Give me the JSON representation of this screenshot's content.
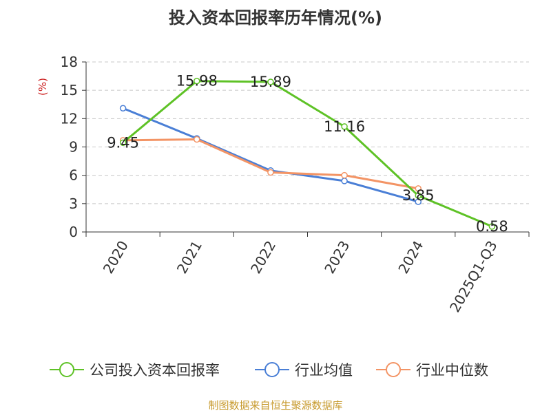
{
  "chart_data": {
    "type": "line",
    "title": "投入资本回报率历年情况(%)",
    "ylabel": "(%)",
    "xlabel": "",
    "categories": [
      "2020",
      "2021",
      "2022",
      "2023",
      "2024",
      "2025Q1-Q3"
    ],
    "ylim": [
      0,
      18
    ],
    "yticks": [
      0,
      3,
      6,
      9,
      12,
      15,
      18
    ],
    "grid": true,
    "legend_position": "bottom",
    "series": [
      {
        "name": "公司投入资本回报率",
        "color": "#5ec226",
        "values": [
          9.45,
          15.98,
          15.89,
          11.16,
          3.85,
          0.58
        ],
        "labels": [
          "9.45",
          "15.98",
          "15.89",
          "11.16",
          "3.85",
          "0.58"
        ]
      },
      {
        "name": "行业均值",
        "color": "#4a7fd6",
        "values": [
          13.1,
          9.9,
          6.5,
          5.4,
          3.2,
          null
        ]
      },
      {
        "name": "行业中位数",
        "color": "#f39465",
        "values": [
          9.7,
          9.8,
          6.3,
          6.0,
          4.6,
          null
        ]
      }
    ]
  },
  "source": "制图数据来自恒生聚源数据库"
}
